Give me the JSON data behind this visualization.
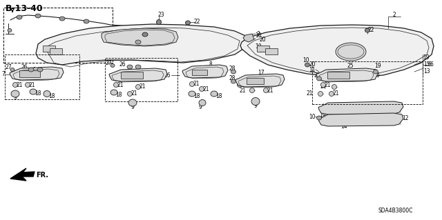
{
  "title": "B-13-40",
  "diagram_code": "SDA4B3800C",
  "bg_color": "#ffffff",
  "line_color": "#1a1a1a",
  "part_label_fs": 5.5,
  "title_fs": 9,
  "code_fs": 5.5,
  "arrow_label": "FR."
}
